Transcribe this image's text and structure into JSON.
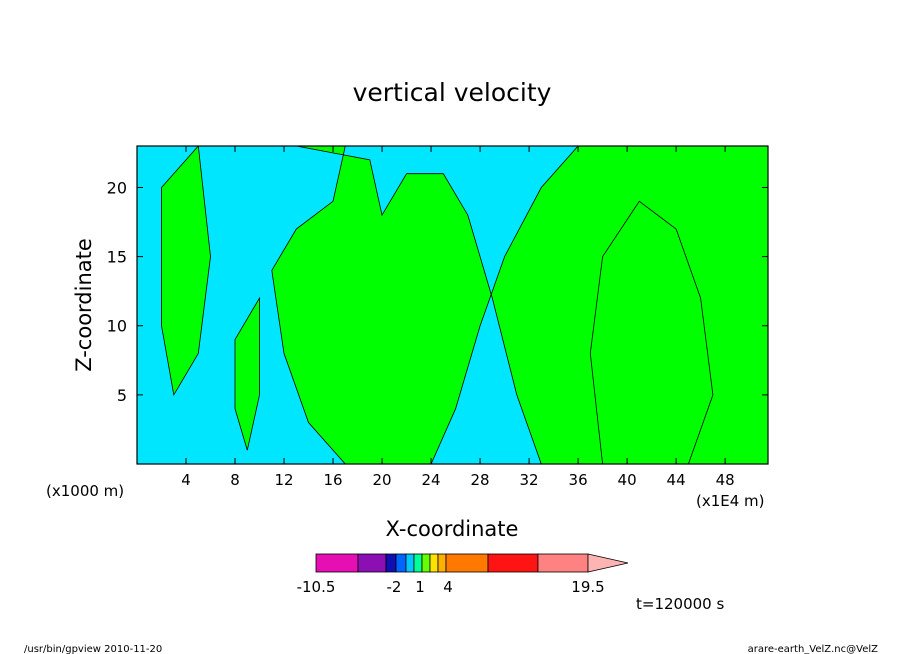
{
  "chart_data": {
    "type": "heatmap",
    "title": "vertical velocity",
    "xlabel": "X-coordinate",
    "ylabel": "Z-coordinate",
    "x_unit_left": "(x1000 m)",
    "x_unit_right": "(x1E4 m)",
    "xlim": [
      0,
      51.5
    ],
    "ylim": [
      0,
      23
    ],
    "x_ticks": [
      4,
      8,
      12,
      16,
      20,
      24,
      28,
      32,
      36,
      40,
      44,
      48
    ],
    "y_ticks": [
      5,
      10,
      15,
      20
    ],
    "field_regions": [
      {
        "level": "positive",
        "color": "#00ff00",
        "polygon": [
          [
            8,
            23
          ],
          [
            17,
            23
          ],
          [
            16,
            19
          ],
          [
            13,
            17
          ],
          [
            11,
            14
          ],
          [
            12,
            8
          ],
          [
            14,
            3
          ],
          [
            17,
            0
          ],
          [
            24,
            0
          ],
          [
            26,
            4
          ],
          [
            28,
            10
          ],
          [
            30,
            15
          ],
          [
            33,
            20
          ],
          [
            36,
            23
          ],
          [
            51.5,
            23
          ],
          [
            51.5,
            0
          ],
          [
            38,
            0
          ],
          [
            37,
            8
          ],
          [
            38,
            15
          ],
          [
            41,
            19
          ],
          [
            44,
            17
          ],
          [
            46,
            12
          ],
          [
            47,
            5
          ],
          [
            45,
            0
          ],
          [
            33,
            0
          ],
          [
            31,
            5
          ],
          [
            29,
            12
          ],
          [
            27,
            18
          ],
          [
            25,
            21
          ],
          [
            22,
            21
          ],
          [
            20,
            18
          ],
          [
            19,
            22
          ],
          [
            13,
            23
          ]
        ]
      },
      {
        "level": "positive",
        "color": "#00ff00",
        "polygon": [
          [
            2,
            20
          ],
          [
            5,
            23
          ],
          [
            6,
            15
          ],
          [
            5,
            8
          ],
          [
            3,
            5
          ],
          [
            2,
            10
          ]
        ]
      },
      {
        "level": "positive",
        "color": "#00ff00",
        "polygon": [
          [
            8,
            9
          ],
          [
            10,
            12
          ],
          [
            10,
            5
          ],
          [
            9,
            1
          ],
          [
            8,
            4
          ]
        ]
      }
    ],
    "colorbar": {
      "levels": [
        -10.5,
        -2,
        1,
        4,
        19.5
      ],
      "colors": [
        "#e60fb4",
        "#8c0fb4",
        "#0f0fb4",
        "#0064ff",
        "#00c8ff",
        "#00ff96",
        "#64ff00",
        "#ffe100",
        "#ffaf00",
        "#ff7800",
        "#ff1414",
        "#ff8282",
        "#ffb4b4"
      ]
    },
    "time_label": "t=120000 s"
  },
  "footer": {
    "left": "/usr/bin/gpview   2010-11-20",
    "right": "arare-earth_VelZ.nc@VelZ"
  }
}
